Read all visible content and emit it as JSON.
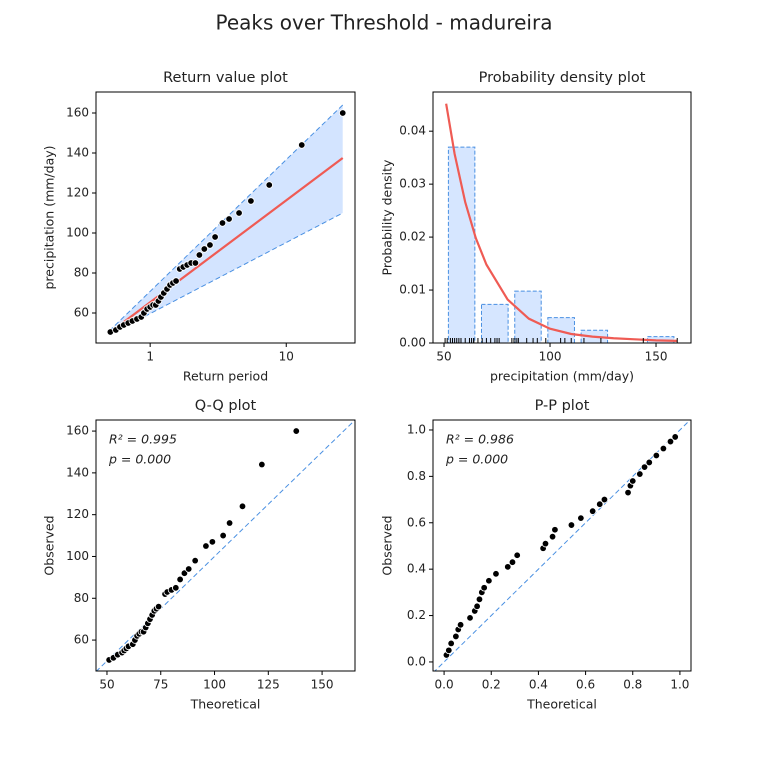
{
  "title": "Peaks over Threshold - madureira",
  "chart_data": [
    {
      "type": "scatter",
      "title": "Return value plot",
      "xlabel": "Return period",
      "ylabel": "precipitation (mm/day)",
      "xlog": true,
      "xlim": [
        0.4,
        32
      ],
      "ylim": [
        45,
        170.5
      ],
      "xticks": [
        1,
        10
      ],
      "yticks": [
        60,
        80,
        100,
        120,
        140,
        160
      ],
      "band": {
        "x": [
          0.5,
          26
        ],
        "lower": [
          49,
          110
        ],
        "upper": [
          51,
          164
        ],
        "color": "#d3e4ff",
        "edge_color": "#4a90e2"
      },
      "series": [
        {
          "style": "line",
          "color": "#ef5b54",
          "x": [
            0.5,
            26
          ],
          "values": [
            50,
            137.5
          ]
        },
        {
          "style": "points",
          "color": "#000000",
          "x": [
            0.51,
            0.56,
            0.6,
            0.64,
            0.69,
            0.74,
            0.8,
            0.86,
            0.9,
            0.95,
            1.0,
            1.05,
            1.1,
            1.15,
            1.2,
            1.26,
            1.33,
            1.4,
            1.47,
            1.55,
            1.65,
            1.75,
            1.87,
            2.0,
            2.15,
            2.3,
            2.5,
            2.75,
            3.0,
            3.4,
            3.8,
            4.5,
            5.5,
            7.5,
            13,
            26
          ],
          "values": [
            50.5,
            51.5,
            53,
            54,
            55,
            56,
            57,
            58,
            60,
            62,
            63,
            64,
            64,
            66,
            68,
            70,
            72,
            74,
            75,
            76,
            82,
            83,
            84,
            85,
            85,
            89,
            92,
            94,
            98,
            105,
            107,
            110,
            116,
            124,
            144,
            160
          ]
        }
      ]
    },
    {
      "type": "histogram",
      "title": "Probability density plot",
      "xlabel": "precipitation (mm/day)",
      "ylabel": "Probability density",
      "xlim": [
        44.8,
        166.5
      ],
      "ylim": [
        0,
        0.0474
      ],
      "xticks": [
        50,
        100,
        150
      ],
      "yticks": [
        {
          "value": 0,
          "label": "0.00"
        },
        {
          "value": 0.01,
          "label": "0.01"
        },
        {
          "value": 0.02,
          "label": "0.02"
        },
        {
          "value": 0.03,
          "label": "0.03"
        },
        {
          "value": 0.04,
          "label": "0.04"
        }
      ],
      "bins": [
        50.5,
        66.1,
        81.8,
        97.4,
        113.1,
        128.7,
        144.4,
        160.0
      ],
      "values": [
        0.037,
        0.0073,
        0.0098,
        0.0048,
        0.0024,
        0,
        0.0012
      ],
      "bar_color": "#d6e6ff",
      "bar_edge": "#4a90e2",
      "rug": [
        50.5,
        51.5,
        53,
        54,
        55,
        56,
        57,
        58,
        60,
        62,
        63,
        64,
        64,
        66,
        68,
        70,
        72,
        74,
        75,
        76,
        82,
        83,
        84,
        85,
        85,
        89,
        92,
        94,
        98,
        105,
        107,
        110,
        116,
        124,
        144,
        160
      ],
      "series": [
        {
          "style": "line",
          "color": "#ef5b54",
          "x": [
            51,
            55,
            60,
            65,
            70,
            80,
            90,
            100,
            110,
            120,
            130,
            140,
            150,
            160
          ],
          "values": [
            0.0452,
            0.0357,
            0.0266,
            0.0198,
            0.0148,
            0.0082,
            0.0046,
            0.0027,
            0.0017,
            0.0012,
            0.0009,
            0.0007,
            0.0005,
            0.0004
          ]
        }
      ]
    },
    {
      "type": "scatter",
      "title": "Q-Q plot",
      "xlabel": "Theoretical",
      "ylabel": "Observed",
      "xlim": [
        44.9,
        165.3
      ],
      "ylim": [
        45.2,
        165.3
      ],
      "xticks": [
        50,
        75,
        100,
        125,
        150
      ],
      "yticks": [
        60,
        80,
        100,
        120,
        140,
        160
      ],
      "diagonal": true,
      "diagonal_color": "#4a90e2",
      "annotations": [
        "R² = 0.995",
        "p = 0.000"
      ],
      "series": [
        {
          "style": "points",
          "color": "#000000",
          "x": [
            51,
            53,
            55,
            57,
            58,
            59,
            60,
            62,
            63,
            64,
            65,
            66,
            67,
            68,
            69,
            70,
            71,
            72,
            73,
            74,
            77,
            78,
            80,
            82,
            82,
            84,
            86,
            88,
            91,
            96,
            99,
            104,
            107,
            113,
            122,
            138
          ],
          "values": [
            50.5,
            51.5,
            53,
            54,
            55,
            56,
            57,
            58,
            60,
            62,
            63,
            64,
            64,
            66,
            68,
            70,
            72,
            74,
            75,
            76,
            82,
            83,
            84,
            85,
            85,
            89,
            92,
            94,
            98,
            105,
            107,
            110,
            116,
            124,
            144,
            160
          ]
        }
      ]
    },
    {
      "type": "scatter",
      "title": "P-P plot",
      "xlabel": "Theoretical",
      "ylabel": "Observed",
      "xlim": [
        -0.047,
        1.047
      ],
      "ylim": [
        -0.039,
        1.043
      ],
      "xticks": [
        {
          "value": 0,
          "label": "0.0"
        },
        {
          "value": 0.2,
          "label": "0.2"
        },
        {
          "value": 0.4,
          "label": "0.4"
        },
        {
          "value": 0.6,
          "label": "0.6"
        },
        {
          "value": 0.8,
          "label": "0.8"
        },
        {
          "value": 1,
          "label": "1.0"
        }
      ],
      "yticks": [
        {
          "value": 0,
          "label": "0.0"
        },
        {
          "value": 0.2,
          "label": "0.2"
        },
        {
          "value": 0.4,
          "label": "0.4"
        },
        {
          "value": 0.6,
          "label": "0.6"
        },
        {
          "value": 0.8,
          "label": "0.8"
        },
        {
          "value": 1,
          "label": "1.0"
        }
      ],
      "diagonal": true,
      "diagonal_color": "#4a90e2",
      "annotations": [
        "R² = 0.986",
        "p = 0.000"
      ],
      "series": [
        {
          "style": "points",
          "color": "#000000",
          "x": [
            0.01,
            0.02,
            0.03,
            0.05,
            0.06,
            0.07,
            0.11,
            0.13,
            0.14,
            0.15,
            0.16,
            0.17,
            0.19,
            0.22,
            0.27,
            0.29,
            0.31,
            0.42,
            0.43,
            0.46,
            0.47,
            0.54,
            0.58,
            0.63,
            0.66,
            0.68,
            0.78,
            0.79,
            0.8,
            0.83,
            0.85,
            0.87,
            0.9,
            0.93,
            0.96,
            0.98
          ],
          "values": [
            0.03,
            0.05,
            0.08,
            0.11,
            0.14,
            0.16,
            0.19,
            0.22,
            0.24,
            0.27,
            0.3,
            0.32,
            0.35,
            0.38,
            0.41,
            0.43,
            0.46,
            0.49,
            0.51,
            0.54,
            0.57,
            0.59,
            0.62,
            0.65,
            0.68,
            0.7,
            0.73,
            0.76,
            0.78,
            0.81,
            0.84,
            0.86,
            0.89,
            0.92,
            0.95,
            0.97
          ]
        }
      ]
    }
  ]
}
